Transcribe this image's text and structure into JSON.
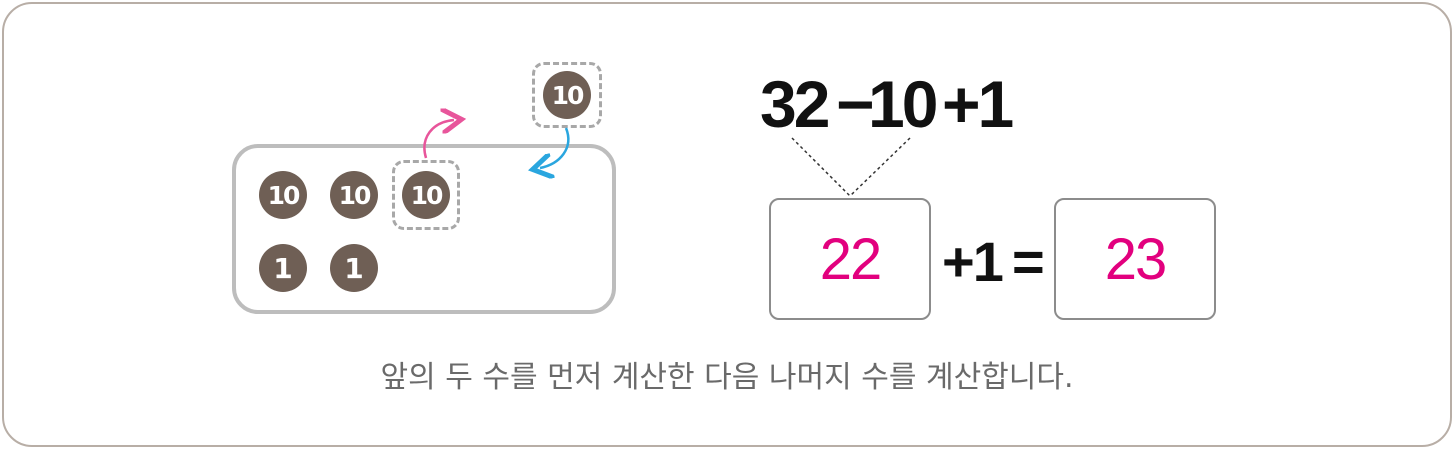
{
  "coins": {
    "floating_ten": "10",
    "row1": [
      "10",
      "10",
      "10"
    ],
    "row2": [
      "1",
      "1"
    ]
  },
  "expression": {
    "first": "32",
    "minus_op": "−",
    "second": "10",
    "plus_one": "+1"
  },
  "result": {
    "partial": "22",
    "plus_one": "+1",
    "equals": "=",
    "final": "23"
  },
  "caption": "앞의 두 수를 먼저 계산한 다음 나머지 수를 계산합니다.",
  "colors": {
    "coin": "#6f5f55",
    "answer": "#e2007e",
    "arrow_up": "#e8559b",
    "arrow_down": "#2aa6df"
  }
}
